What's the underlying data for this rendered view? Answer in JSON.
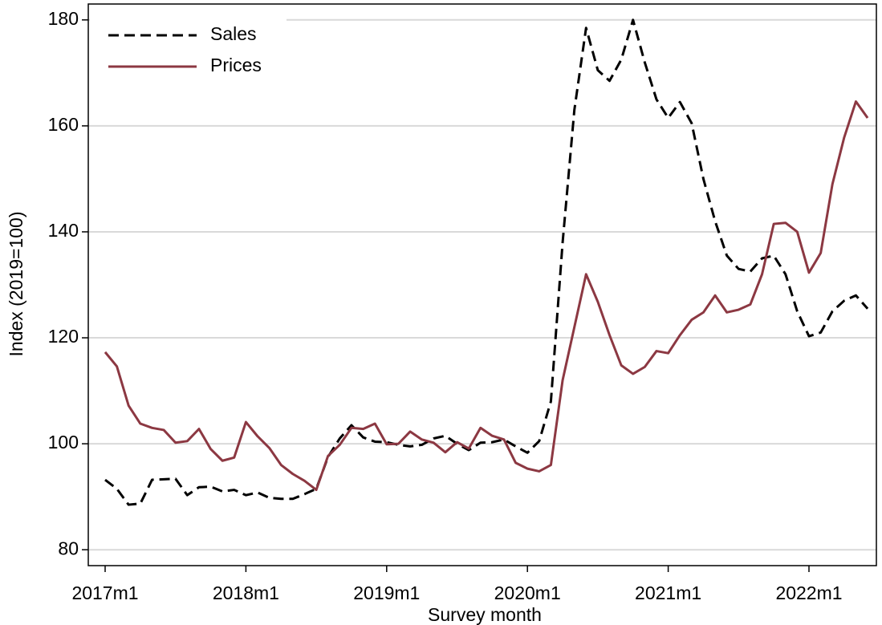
{
  "chart_data": {
    "type": "line",
    "xlabel": "Survey month",
    "ylabel": "Index (2019=100)",
    "categories": [
      "2017m1",
      null,
      null,
      null,
      null,
      null,
      null,
      null,
      null,
      null,
      null,
      null,
      "2018m1",
      null,
      null,
      null,
      null,
      null,
      null,
      null,
      null,
      null,
      null,
      null,
      "2019m1",
      null,
      null,
      null,
      null,
      null,
      null,
      null,
      null,
      null,
      null,
      null,
      "2020m1",
      null,
      null,
      null,
      null,
      null,
      null,
      null,
      null,
      null,
      null,
      null,
      "2021m1",
      null,
      null,
      null,
      null,
      null,
      null,
      null,
      null,
      null,
      null,
      null,
      "2022m1",
      null,
      null,
      null,
      null,
      null
    ],
    "series": [
      {
        "name": "Sales",
        "color": "#000000",
        "dashed": true,
        "values": [
          93.2,
          91.5,
          88.5,
          88.7,
          93.2,
          93.3,
          93.4,
          90.3,
          91.8,
          91.9,
          91.0,
          91.3,
          90.3,
          90.8,
          89.8,
          89.6,
          89.6,
          90.5,
          91.5,
          97.5,
          101,
          103.5,
          101.2,
          100.4,
          100.3,
          99.8,
          99.5,
          99.8,
          101,
          101.5,
          100,
          98.8,
          100.2,
          100.3,
          100.8,
          99.5,
          98.3,
          100.5,
          108,
          138,
          163,
          178.5,
          170.5,
          168.5,
          172.5,
          180,
          172,
          165,
          161.5,
          164.5,
          160.5,
          150,
          142,
          135.5,
          133,
          132.5,
          135,
          135.5,
          132,
          125,
          120.3,
          121,
          125,
          127,
          128,
          125.5
        ]
      },
      {
        "name": "Prices",
        "color": "#8c3842",
        "dashed": false,
        "values": [
          117.3,
          114.6,
          107.2,
          103.8,
          103,
          102.6,
          100.2,
          100.5,
          102.8,
          99,
          96.8,
          97.4,
          104.1,
          101.4,
          99.2,
          96,
          94.3,
          93,
          91.3,
          97.7,
          99.8,
          103,
          102.8,
          103.8,
          99.9,
          100,
          102.3,
          100.8,
          100.2,
          98.4,
          100.3,
          99.1,
          103,
          101.5,
          100.8,
          96.4,
          95.3,
          94.8,
          96,
          112,
          122,
          132,
          126.8,
          120.5,
          114.8,
          113.2,
          114.5,
          117.5,
          117.1,
          120.5,
          123.4,
          124.8,
          128,
          124.8,
          125.3,
          126.3,
          132,
          141.5,
          141.7,
          140,
          132.3,
          136,
          149,
          157.8,
          164.6,
          161.5
        ]
      }
    ],
    "ylim": [
      77,
      183
    ],
    "yticks": [
      80,
      100,
      120,
      140,
      160,
      180
    ],
    "grid": true,
    "legend": "top-left"
  }
}
